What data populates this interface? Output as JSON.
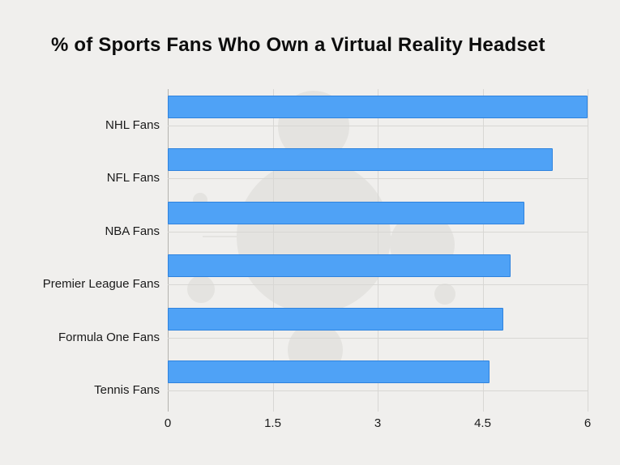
{
  "title": "% of Sports Fans Who Own a Virtual Reality Headset",
  "chart_data": {
    "type": "bar",
    "orientation": "horizontal",
    "title": "% of Sports Fans Who Own a Virtual Reality Headset",
    "categories": [
      "NHL Fans",
      "NFL Fans",
      "NBA Fans",
      "Premier League Fans",
      "Formula One Fans",
      "Tennis Fans"
    ],
    "values": [
      6.0,
      5.5,
      5.1,
      4.9,
      4.8,
      4.6
    ],
    "xlabel": "",
    "ylabel": "",
    "xlim": [
      0,
      6
    ],
    "xticks": [
      0,
      1.5,
      3,
      4.5,
      6
    ],
    "grid": true,
    "legend": false,
    "bar_color": "#4FA2F6",
    "bar_border_color": "#2F83DE",
    "background_color": "#F0EFED"
  }
}
